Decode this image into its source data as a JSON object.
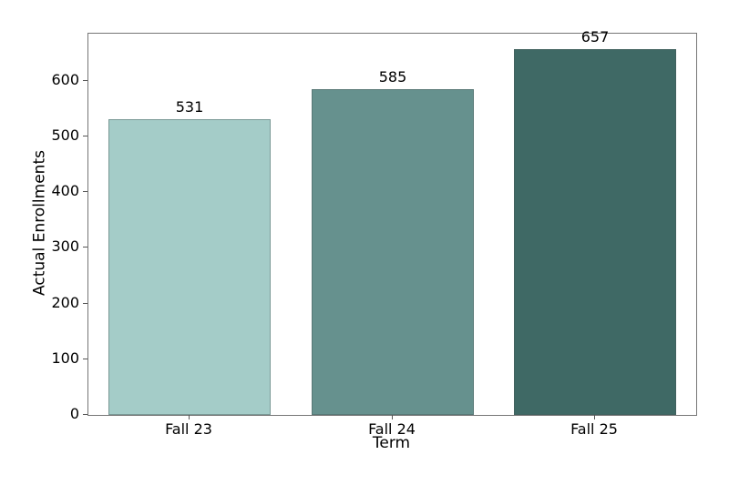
{
  "figure": {
    "background": "#ffffff"
  },
  "colors": {
    "spine": "#767676",
    "tick": "#555555",
    "text": "#000000"
  },
  "chart_data": {
    "type": "bar",
    "categories": [
      "Fall 23",
      "Fall 24",
      "Fall 25"
    ],
    "values": [
      531,
      585,
      657
    ],
    "bar_colors": [
      "#a4ccc8",
      "#66918e",
      "#3f6965"
    ],
    "bar_edge_color": "rgba(70, 90, 88, 0.45)",
    "value_labels": [
      "531",
      "585",
      "657"
    ],
    "xlabel": "Term",
    "ylabel": "Actual Enrollments",
    "ylim": [
      0,
      685
    ],
    "yticks": [
      0,
      100,
      200,
      300,
      400,
      500,
      600
    ],
    "ytick_labels": [
      "0",
      "100",
      "200",
      "300",
      "400",
      "500",
      "600"
    ],
    "bar_width_fraction": 0.8,
    "grid": false,
    "legend": null
  }
}
